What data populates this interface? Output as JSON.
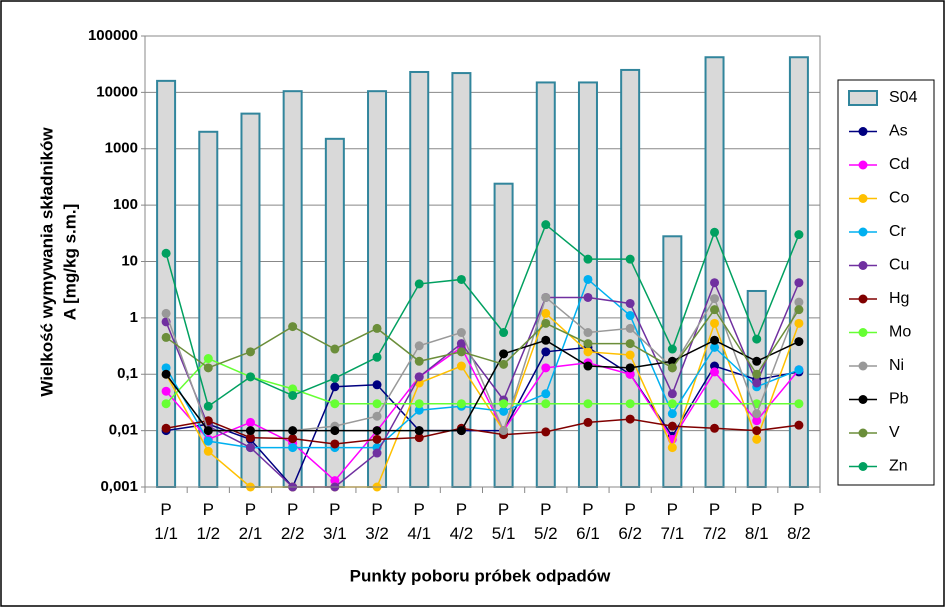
{
  "chart_data": {
    "type": "combo",
    "yscale": "log",
    "ylabel": [
      "Wielkość wymywania składników",
      "A [mg/kg s.m.]"
    ],
    "xlabel": "Punkty poboru próbek odpadów",
    "categories": [
      "P 1/1",
      "P 1/2",
      "P 2/1",
      "P 2/2",
      "P 3/1",
      "P 3/2",
      "P 4/1",
      "P 4/2",
      "P 5/1",
      "P 5/2",
      "P 6/1",
      "P 6/2",
      "P 7/1",
      "P 7/2",
      "P 8/1",
      "P 8/2"
    ],
    "ylim": [
      0.001,
      100000
    ],
    "yticks": [
      {
        "value": 0.001,
        "label": "0,001"
      },
      {
        "value": 0.01,
        "label": "0,01"
      },
      {
        "value": 0.1,
        "label": "0,1"
      },
      1,
      10,
      100,
      1000,
      10000,
      100000
    ],
    "grid": true,
    "legend": "right",
    "series": [
      {
        "name": "S04",
        "type": "bar",
        "color": "#d9d9d9",
        "values": [
          16000,
          2000,
          4200,
          10500,
          1500,
          10500,
          23000,
          22000,
          240,
          15000,
          15000,
          25000,
          28,
          42000,
          3,
          42000
        ]
      },
      {
        "name": "As",
        "type": "line",
        "color": "#000080",
        "values": [
          0.01,
          0.013,
          0.007,
          0.001,
          0.06,
          0.065,
          0.01,
          0.01,
          0.01,
          0.25,
          0.3,
          0.1,
          0.008,
          0.14,
          0.08,
          0.11
        ]
      },
      {
        "name": "Cd",
        "type": "line",
        "color": "#ff00ff",
        "values": [
          0.05,
          0.007,
          0.014,
          0.006,
          0.0013,
          0.01,
          0.09,
          0.3,
          0.01,
          0.13,
          0.16,
          0.1,
          0.007,
          0.11,
          0.015,
          0.12
        ]
      },
      {
        "name": "Co",
        "type": "line",
        "color": "#ffc000",
        "values": [
          0.1,
          0.0043,
          0.001,
          0.001,
          0.001,
          0.001,
          0.07,
          0.14,
          0.01,
          1.2,
          0.25,
          0.22,
          0.005,
          0.8,
          0.007,
          0.8
        ]
      },
      {
        "name": "Cr",
        "type": "line",
        "color": "#00b0f0",
        "values": [
          0.13,
          0.0065,
          0.005,
          0.005,
          0.005,
          0.005,
          0.023,
          0.027,
          0.022,
          0.045,
          4.8,
          1.1,
          0.02,
          0.3,
          0.06,
          0.12
        ]
      },
      {
        "name": "Cu",
        "type": "line",
        "color": "#7030a0",
        "values": [
          0.85,
          0.012,
          0.005,
          0.001,
          0.001,
          0.004,
          0.09,
          0.35,
          0.035,
          2.3,
          2.3,
          1.8,
          0.045,
          4.2,
          0.07,
          4.2
        ]
      },
      {
        "name": "Hg",
        "type": "line",
        "color": "#800000",
        "values": [
          0.011,
          0.015,
          0.0075,
          0.0072,
          0.0058,
          0.007,
          0.0075,
          0.011,
          0.0085,
          0.0095,
          0.014,
          0.016,
          0.012,
          0.011,
          0.01,
          0.0125
        ]
      },
      {
        "name": "Mo",
        "type": "line",
        "color": "#66ff33",
        "values": [
          0.03,
          0.19,
          0.09,
          0.055,
          0.03,
          0.03,
          0.03,
          0.03,
          0.03,
          0.03,
          0.03,
          0.03,
          0.03,
          0.03,
          0.03,
          0.03
        ]
      },
      {
        "name": "Ni",
        "type": "line",
        "color": "#999999",
        "values": [
          1.2,
          0.01,
          0.01,
          0.01,
          0.012,
          0.018,
          0.32,
          0.55,
          0.01,
          2.3,
          0.55,
          0.65,
          0.13,
          2.2,
          0.02,
          1.9
        ]
      },
      {
        "name": "Pb",
        "type": "line",
        "color": "#000000",
        "values": [
          0.1,
          0.01,
          0.01,
          0.01,
          0.01,
          0.01,
          0.01,
          0.01,
          0.23,
          0.4,
          0.14,
          0.13,
          0.17,
          0.4,
          0.17,
          0.38
        ]
      },
      {
        "name": "V",
        "type": "line",
        "color": "#6b8e3a",
        "values": [
          0.45,
          0.13,
          0.25,
          0.7,
          0.28,
          0.65,
          0.17,
          0.25,
          0.15,
          0.8,
          0.35,
          0.35,
          0.13,
          1.4,
          0.1,
          1.4
        ]
      },
      {
        "name": "Zn",
        "type": "line",
        "color": "#00a060",
        "values": [
          14,
          0.027,
          0.09,
          0.042,
          0.085,
          0.2,
          4,
          4.8,
          0.55,
          45,
          11,
          11,
          0.28,
          33,
          0.42,
          30
        ]
      }
    ]
  }
}
